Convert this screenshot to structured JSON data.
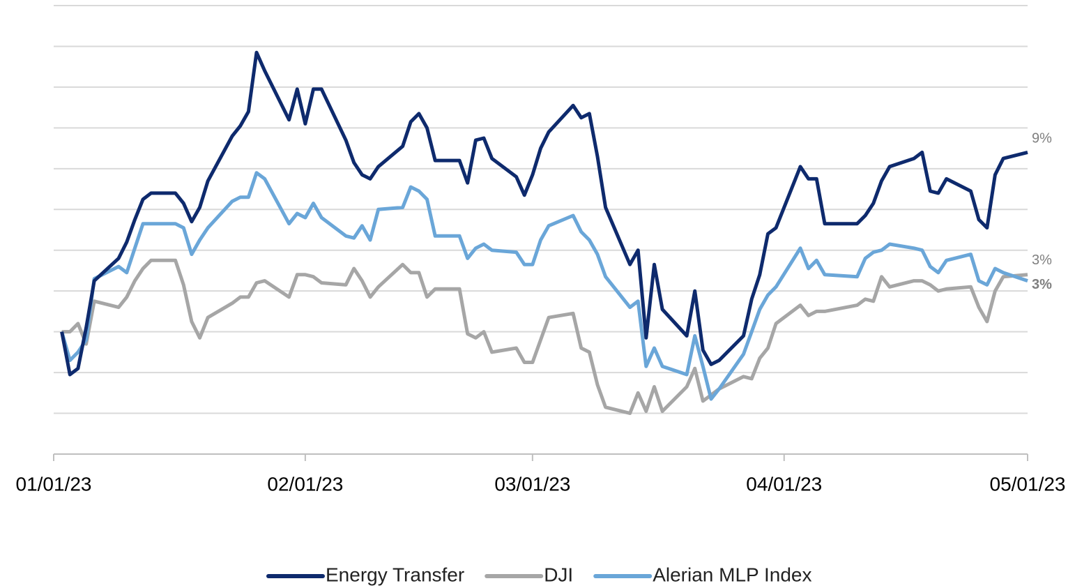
{
  "chart_data": {
    "type": "line",
    "x": [
      "01/02/23",
      "01/03/23",
      "01/04/23",
      "01/05/23",
      "01/06/23",
      "01/09/23",
      "01/10/23",
      "01/11/23",
      "01/12/23",
      "01/13/23",
      "01/16/23",
      "01/17/23",
      "01/18/23",
      "01/19/23",
      "01/20/23",
      "01/23/23",
      "01/24/23",
      "01/25/23",
      "01/26/23",
      "01/27/23",
      "01/30/23",
      "01/31/23",
      "02/01/23",
      "02/02/23",
      "02/03/23",
      "02/06/23",
      "02/07/23",
      "02/08/23",
      "02/09/23",
      "02/10/23",
      "02/13/23",
      "02/14/23",
      "02/15/23",
      "02/16/23",
      "02/17/23",
      "02/20/23",
      "02/21/23",
      "02/22/23",
      "02/23/23",
      "02/24/23",
      "02/27/23",
      "02/28/23",
      "03/01/23",
      "03/02/23",
      "03/03/23",
      "03/06/23",
      "03/07/23",
      "03/08/23",
      "03/09/23",
      "03/10/23",
      "03/13/23",
      "03/14/23",
      "03/15/23",
      "03/16/23",
      "03/17/23",
      "03/20/23",
      "03/21/23",
      "03/22/23",
      "03/23/23",
      "03/24/23",
      "03/27/23",
      "03/28/23",
      "03/29/23",
      "03/30/23",
      "03/31/23",
      "04/03/23",
      "04/04/23",
      "04/05/23",
      "04/06/23",
      "04/10/23",
      "04/11/23",
      "04/12/23",
      "04/13/23",
      "04/14/23",
      "04/17/23",
      "04/18/23",
      "04/19/23",
      "04/20/23",
      "04/21/23",
      "04/24/23",
      "04/25/23",
      "04/26/23",
      "04/27/23",
      "04/28/23",
      "05/01/23"
    ],
    "series": [
      {
        "name": "Energy Transfer",
        "color": "#0e2a6d",
        "end_label": "9%",
        "values": [
          0,
          -2.1,
          -1.8,
          0.2,
          2.5,
          3.6,
          4.4,
          5.5,
          6.5,
          6.8,
          6.8,
          6.3,
          5.4,
          6.1,
          7.4,
          9.6,
          10.1,
          10.8,
          13.7,
          12.8,
          10.4,
          11.9,
          10.2,
          11.9,
          11.9,
          9.4,
          8.3,
          7.7,
          7.5,
          8.1,
          9.1,
          10.3,
          10.7,
          10.0,
          8.4,
          8.4,
          7.3,
          9.4,
          9.5,
          8.5,
          7.6,
          6.7,
          7.7,
          9.0,
          9.8,
          11.1,
          10.5,
          10.7,
          8.6,
          6.1,
          3.3,
          4.0,
          -0.3,
          3.3,
          1.1,
          -0.2,
          2.0,
          -0.9,
          -1.6,
          -1.4,
          -0.2,
          1.6,
          2.8,
          4.8,
          5.1,
          8.1,
          7.5,
          7.5,
          5.3,
          5.3,
          5.7,
          6.3,
          7.4,
          8.1,
          8.5,
          8.8,
          6.9,
          6.8,
          7.5,
          6.9,
          5.5,
          5.1,
          7.7,
          8.5,
          8.8
        ]
      },
      {
        "name": "DJI",
        "color": "#a6a6a6",
        "end_label": "3%",
        "values": [
          0,
          0,
          0.4,
          -0.6,
          1.5,
          1.2,
          1.7,
          2.5,
          3.1,
          3.5,
          3.5,
          2.3,
          0.5,
          -0.3,
          0.7,
          1.4,
          1.7,
          1.7,
          2.4,
          2.5,
          1.7,
          2.8,
          2.8,
          2.7,
          2.4,
          2.3,
          3.1,
          2.5,
          1.7,
          2.2,
          3.3,
          2.9,
          2.9,
          1.7,
          2.1,
          2.1,
          -0.1,
          -0.3,
          0,
          -1.0,
          -0.8,
          -1.5,
          -1.5,
          -0.4,
          0.7,
          0.9,
          -0.8,
          -1.0,
          -2.6,
          -3.7,
          -4.0,
          -3.0,
          -3.9,
          -2.7,
          -3.9,
          -2.7,
          -1.8,
          -3.4,
          -3.1,
          -2.8,
          -2.2,
          -2.3,
          -1.3,
          -0.8,
          0.4,
          1.3,
          0.8,
          1.0,
          1.0,
          1.3,
          1.6,
          1.5,
          2.7,
          2.2,
          2.5,
          2.5,
          2.3,
          2.0,
          2.1,
          2.2,
          1.2,
          0.5,
          2.0,
          2.7,
          2.8
        ]
      },
      {
        "name": "Alerian MLP Index",
        "color": "#6aa6d8",
        "end_label": "3%",
        "values": [
          0,
          -1.4,
          -1.0,
          -0.4,
          2.6,
          3.2,
          2.9,
          4.1,
          5.3,
          5.3,
          5.3,
          5.1,
          3.8,
          4.5,
          5.1,
          6.4,
          6.6,
          6.6,
          7.8,
          7.5,
          5.3,
          5.8,
          5.6,
          6.3,
          5.6,
          4.7,
          4.6,
          5.2,
          4.5,
          6.0,
          6.1,
          7.1,
          6.9,
          6.5,
          4.7,
          4.7,
          3.6,
          4.1,
          4.3,
          4.0,
          3.9,
          3.3,
          3.3,
          4.5,
          5.2,
          5.7,
          4.9,
          4.5,
          3.8,
          2.7,
          1.2,
          1.5,
          -1.7,
          -0.8,
          -1.7,
          -2.1,
          -0.2,
          -1.7,
          -3.3,
          -2.8,
          -1.1,
          0,
          1.1,
          1.8,
          2.2,
          4.1,
          3.1,
          3.5,
          2.8,
          2.7,
          3.6,
          3.9,
          4.0,
          4.3,
          4.1,
          4.0,
          3.2,
          2.9,
          3.5,
          3.8,
          2.5,
          2.3,
          3.1,
          2.9,
          2.5
        ]
      }
    ],
    "xlim": [
      "01/01/23",
      "05/01/23"
    ],
    "xticks": [
      "01/01/23",
      "02/01/23",
      "03/01/23",
      "04/01/23",
      "05/01/23"
    ],
    "ylim": [
      -6,
      16
    ],
    "yticks": [
      -6,
      -4,
      -2,
      0,
      2,
      4,
      6,
      8,
      10,
      12,
      14,
      16
    ],
    "grid": true,
    "legend": "bottom"
  }
}
